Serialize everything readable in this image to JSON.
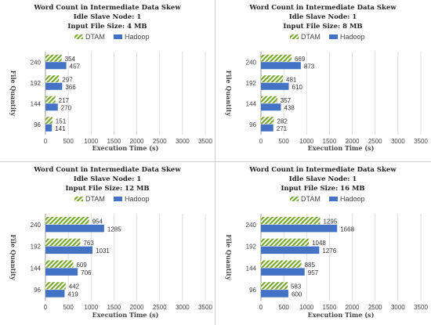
{
  "chart_data": [
    {
      "type": "bar",
      "orientation": "horizontal",
      "title_lines": [
        "Word Count in Intermediate Data Skew",
        "Idle Slave Node: 1",
        "Input File Size: 4 MB"
      ],
      "xlabel": "Execution Time (s)",
      "ylabel": "File Quantity",
      "xlim": [
        0,
        3500
      ],
      "xticks": [
        "0",
        "500",
        "1000",
        "1500",
        "2000",
        "2500",
        "3000",
        "3500"
      ],
      "categories": [
        "240",
        "192",
        "144",
        "96"
      ],
      "series": [
        {
          "name": "DTAM",
          "color": "#7aa82a",
          "pattern": "diagonal-stripe",
          "values": [
            354,
            297,
            217,
            151
          ]
        },
        {
          "name": "Hadoop",
          "color": "#4472c4",
          "pattern": "solid",
          "values": [
            457,
            366,
            270,
            141
          ]
        }
      ],
      "legend_position": "top",
      "grid": true
    },
    {
      "type": "bar",
      "orientation": "horizontal",
      "title_lines": [
        "Word Count in Intermediate Data Skew",
        "Idle Slave Node: 1",
        "Input File Size: 8 MB"
      ],
      "xlabel": "Execution Time (s)",
      "ylabel": "File Quantity",
      "xlim": [
        0,
        3500
      ],
      "xticks": [
        "0",
        "500",
        "1000",
        "1500",
        "2000",
        "2500",
        "3000",
        "3500"
      ],
      "categories": [
        "240",
        "192",
        "144",
        "96"
      ],
      "series": [
        {
          "name": "DTAM",
          "color": "#7aa82a",
          "pattern": "diagonal-stripe",
          "values": [
            669,
            481,
            357,
            282
          ]
        },
        {
          "name": "Hadoop",
          "color": "#4472c4",
          "pattern": "solid",
          "values": [
            873,
            610,
            438,
            271
          ]
        }
      ],
      "legend_position": "top",
      "grid": true
    },
    {
      "type": "bar",
      "orientation": "horizontal",
      "title_lines": [
        "Word Count in Intermediate Data Skew",
        "Idle Slave Node: 1",
        "Input File Size: 12 MB"
      ],
      "xlabel": "Execution Time (s)",
      "ylabel": "File Quantity",
      "xlim": [
        0,
        3500
      ],
      "xticks": [
        "0",
        "500",
        "1000",
        "1500",
        "2000",
        "2500",
        "3000",
        "3500"
      ],
      "categories": [
        "240",
        "192",
        "144",
        "96"
      ],
      "series": [
        {
          "name": "DTAM",
          "color": "#7aa82a",
          "pattern": "diagonal-stripe",
          "values": [
            954,
            763,
            609,
            442
          ]
        },
        {
          "name": "Hadoop",
          "color": "#4472c4",
          "pattern": "solid",
          "values": [
            1285,
            1031,
            706,
            419
          ]
        }
      ],
      "legend_position": "top",
      "grid": true
    },
    {
      "type": "bar",
      "orientation": "horizontal",
      "title_lines": [
        "Word Count in Intermediate Data Skew",
        "Idle Slave Node: 1",
        "Input File Size: 16 MB"
      ],
      "xlabel": "Execution Time (s)",
      "ylabel": "File Quantity",
      "xlim": [
        0,
        3500
      ],
      "xticks": [
        "0",
        "500",
        "1000",
        "1500",
        "2000",
        "2500",
        "3000",
        "3500"
      ],
      "categories": [
        "240",
        "192",
        "144",
        "96"
      ],
      "series": [
        {
          "name": "DTAM",
          "color": "#7aa82a",
          "pattern": "diagonal-stripe",
          "values": [
            1295,
            1048,
            885,
            583
          ]
        },
        {
          "name": "Hadoop",
          "color": "#4472c4",
          "pattern": "solid",
          "values": [
            1668,
            1276,
            957,
            600
          ]
        }
      ],
      "legend_position": "top",
      "grid": true
    }
  ]
}
